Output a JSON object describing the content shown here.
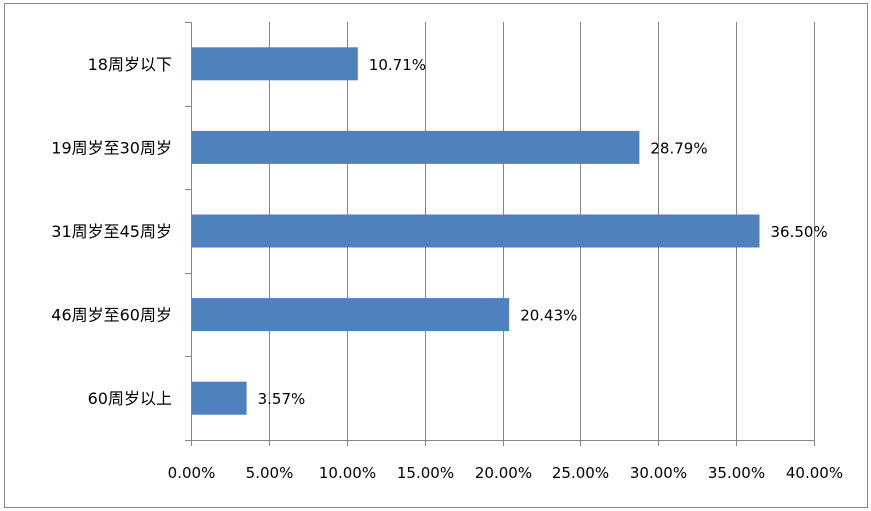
{
  "chart_data": {
    "type": "bar",
    "orientation": "horizontal",
    "categories": [
      "18周岁以下",
      "19周岁至30周岁",
      "31周岁至45周岁",
      "46周岁至60周岁",
      "60周岁以上"
    ],
    "values": [
      10.71,
      28.79,
      36.5,
      20.43,
      3.57
    ],
    "data_labels": [
      "10.71%",
      "28.79%",
      "36.50%",
      "20.43%",
      "3.57%"
    ],
    "x_ticks": [
      "0.00%",
      "5.00%",
      "10.00%",
      "15.00%",
      "20.00%",
      "25.00%",
      "30.00%",
      "35.00%",
      "40.00%"
    ],
    "xlim": [
      0,
      40
    ],
    "grid": "vertical",
    "legend": "none",
    "title": "",
    "xlabel": "",
    "ylabel": "",
    "colors": {
      "bar": "#4F81BD",
      "grid": "#868686",
      "axis": "#868686",
      "border": "#868686"
    }
  }
}
